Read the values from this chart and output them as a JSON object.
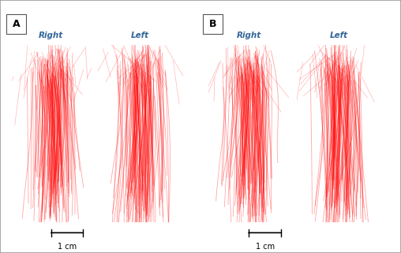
{
  "fig_width": 5.08,
  "fig_height": 3.21,
  "dpi": 100,
  "bg_color": "#ffffff",
  "outer_border_color": "#999999",
  "panel_labels": [
    "A",
    "B"
  ],
  "rl_labels": [
    "Right",
    "Left"
  ],
  "label_color": "#336699",
  "fiber_color": "#ff0000",
  "fiber_alpha": 0.35,
  "scale_bar_label": "1 cm",
  "seed": 42
}
